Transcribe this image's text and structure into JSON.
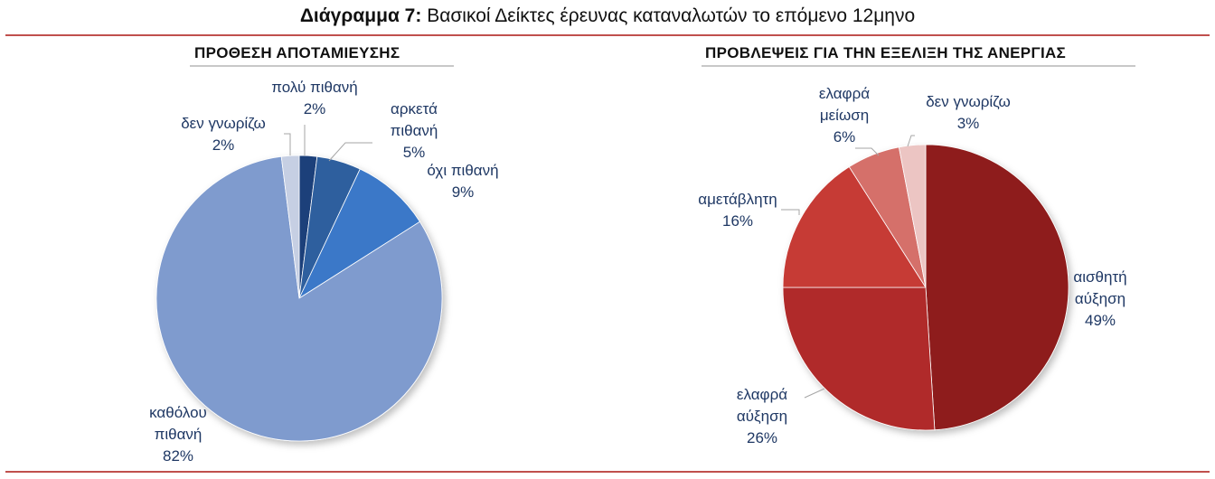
{
  "header": {
    "title_bold": "Διάγραμμα 7:",
    "title_rest": " Βασικοί Δείκτες έρευνας καταναλωτών το επόμενο 12μηνο"
  },
  "colors": {
    "rule": "#c0504d",
    "label_blue": "#1f3864",
    "label_red": "#1f3864"
  },
  "chart_data": [
    {
      "type": "pie",
      "title": "ΠΡΟΘΕΣΗ ΑΠΟΤΑΜΙΕΥΣΗΣ",
      "slices": [
        {
          "label": [
            "πολύ πιθανή"
          ],
          "value": 2,
          "value_label": "2%",
          "color": "#1f3f7a"
        },
        {
          "label": [
            "αρκετά",
            "πιθανή"
          ],
          "value": 5,
          "value_label": "5%",
          "color": "#2f5f9e"
        },
        {
          "label": [
            "όχι πιθανή"
          ],
          "value": 9,
          "value_label": "9%",
          "color": "#3a78c8"
        },
        {
          "label": [
            "καθόλου",
            "πιθανή"
          ],
          "value": 82,
          "value_label": "82%",
          "color": "#7f9bce"
        },
        {
          "label": [
            "δεν γνωρίζω"
          ],
          "value": 2,
          "value_label": "2%",
          "color": "#c6cfe3"
        }
      ]
    },
    {
      "type": "pie",
      "title": "ΠΡΟΒΛΕΨΕΙΣ ΓΙΑ ΤΗΝ ΕΞΕΛΙΞΗ ΤΗΣ ΑΝΕΡΓΙΑΣ",
      "slices": [
        {
          "label": [
            "αισθητή",
            "αύξηση"
          ],
          "value": 49,
          "value_label": "49%",
          "color": "#8e1f1d"
        },
        {
          "label": [
            "ελαφρά",
            "αύξηση"
          ],
          "value": 26,
          "value_label": "26%",
          "color": "#b02c2a"
        },
        {
          "label": [
            "αμετάβλητη"
          ],
          "value": 16,
          "value_label": "16%",
          "color": "#c63a36"
        },
        {
          "label": [
            "ελαφρά",
            "μείωση"
          ],
          "value": 6,
          "value_label": "6%",
          "color": "#d56f6a"
        },
        {
          "label": [
            "δεν γνωρίζω"
          ],
          "value": 3,
          "value_label": "3%",
          "color": "#ecc5c3"
        }
      ]
    }
  ]
}
